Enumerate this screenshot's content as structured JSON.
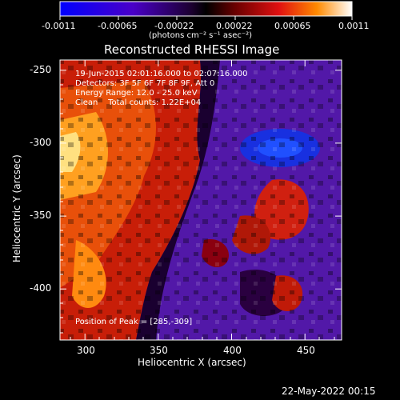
{
  "colorbar": {
    "tick_labels": [
      "-0.0011",
      "-0.00065",
      "-0.00022",
      "0.00022",
      "0.00065",
      "0.0011"
    ],
    "units": "(photons cm⁻² s⁻¹ asec⁻²)"
  },
  "title": "Reconstructed RHESSI Image",
  "info": {
    "line1": "19-Jun-2015 02:01:16.000 to 02:07:16.000",
    "line2": "Detectors: 3F 5F 6F 7F 8F 9F, Att 0",
    "line3": "Energy Range: 12.0 - 25.0 keV",
    "line4": "Clean    Total counts: 1.22E+04"
  },
  "peak_label": "Position of Peak = [285,-309]",
  "xaxis": {
    "label": "Heliocentric X (arcsec)",
    "ticks": [
      "300",
      "350",
      "400",
      "450"
    ],
    "range": [
      283,
      475
    ]
  },
  "yaxis": {
    "label": "Heliocentric Y (arcsec)",
    "ticks": [
      "-250",
      "-300",
      "-350",
      "-400"
    ],
    "range": [
      -435,
      -243
    ]
  },
  "timestamp": "22-May-2022 00:15"
}
